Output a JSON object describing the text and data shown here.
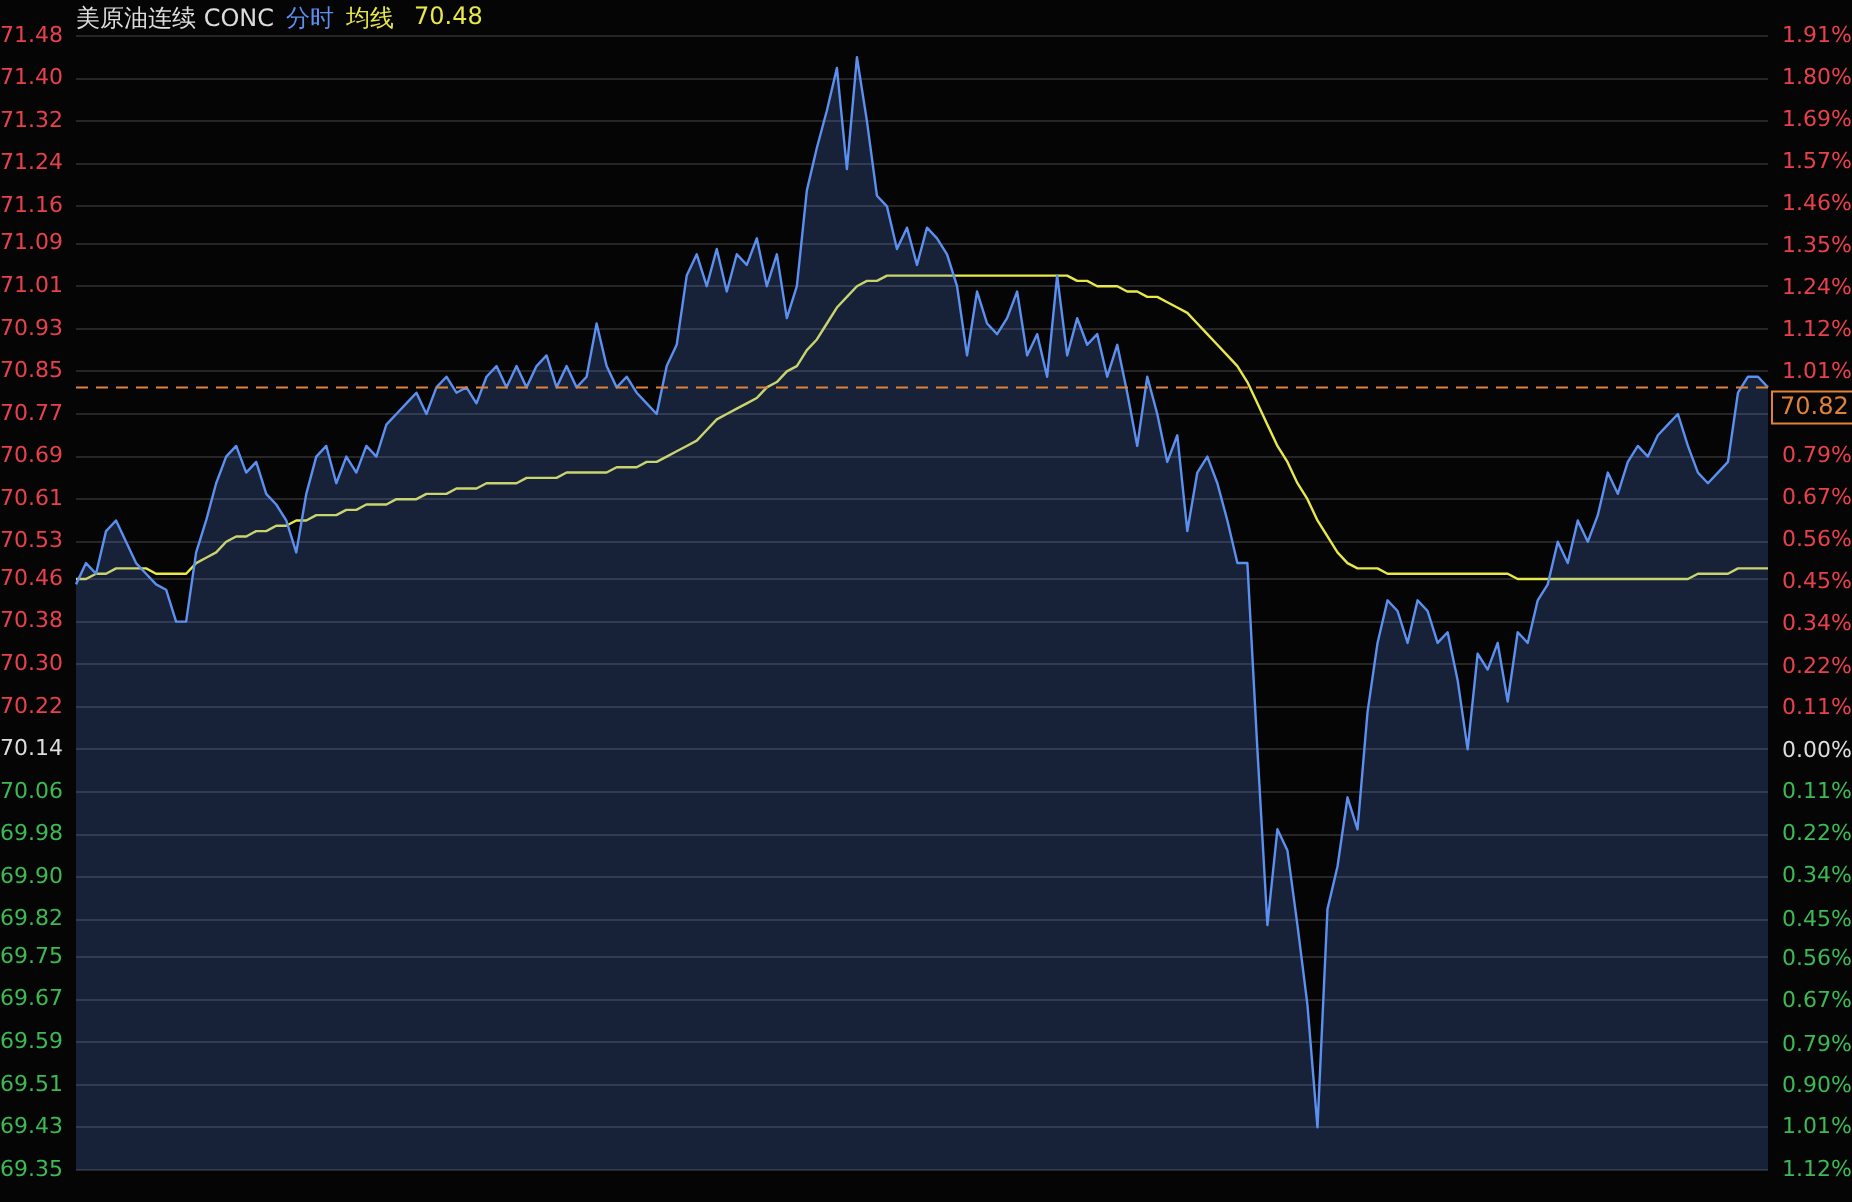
{
  "chart_data": {
    "type": "line",
    "title": "美原油连续 CONC",
    "legend": "top",
    "tick_labels": "y",
    "grid": "y",
    "marker": "none",
    "annotations": [
      "70.48"
    ],
    "categories": [
      null,
      null,
      null,
      null,
      null,
      null,
      null,
      null,
      null,
      null,
      null,
      null,
      null,
      null,
      null,
      null,
      null,
      null,
      null,
      null,
      null,
      null,
      null,
      null,
      null,
      null,
      null,
      null,
      null,
      null,
      null,
      null,
      null,
      null,
      null,
      null,
      null,
      null,
      null,
      null,
      null,
      null,
      null,
      null,
      null,
      null,
      null,
      null,
      null,
      null,
      null,
      null,
      null,
      null,
      null,
      null,
      null,
      null,
      null,
      null,
      null,
      null,
      null,
      null,
      null,
      null,
      null,
      null,
      null,
      null,
      null,
      null,
      null,
      null,
      null,
      null,
      null,
      null,
      null,
      null,
      null,
      null,
      null,
      null,
      null,
      null,
      null,
      null,
      null,
      null,
      null,
      null,
      null,
      null,
      null,
      null,
      null,
      null,
      null,
      null,
      null,
      null,
      null,
      null,
      null,
      null,
      null,
      null,
      null,
      null,
      null,
      null,
      null,
      null,
      null,
      null,
      null,
      null,
      null,
      null,
      null,
      null,
      null,
      null,
      null,
      null,
      null,
      null,
      null,
      null,
      null,
      null,
      null,
      null,
      null,
      null,
      null,
      null,
      null,
      null,
      null,
      null,
      null,
      null,
      null,
      null,
      null,
      null,
      null,
      null,
      null,
      null,
      null,
      null,
      null,
      null,
      null,
      null,
      null,
      null,
      null,
      null,
      null,
      null,
      null,
      null,
      null,
      null,
      null,
      null
    ],
    "series": [
      {
        "name": "分时",
        "type": "area",
        "color": "#5b8ff0",
        "values": [
          70.45,
          70.49,
          70.47,
          70.55,
          70.57,
          70.53,
          70.49,
          70.47,
          70.45,
          70.44,
          70.38,
          70.38,
          70.51,
          70.57,
          70.64,
          70.69,
          70.71,
          70.66,
          70.68,
          70.62,
          70.6,
          70.57,
          70.51,
          70.62,
          70.69,
          70.71,
          70.64,
          70.69,
          70.66,
          70.71,
          70.69,
          70.75,
          70.77,
          70.79,
          70.81,
          70.77,
          70.82,
          70.84,
          70.81,
          70.82,
          70.79,
          70.84,
          70.86,
          70.82,
          70.86,
          70.82,
          70.86,
          70.88,
          70.82,
          70.86,
          70.82,
          70.84,
          70.94,
          70.86,
          70.82,
          70.84,
          70.81,
          70.79,
          70.77,
          70.86,
          70.9,
          71.03,
          71.07,
          71.01,
          71.08,
          71.0,
          71.07,
          71.05,
          71.1,
          71.01,
          71.07,
          70.95,
          71.01,
          71.19,
          71.27,
          71.34,
          71.42,
          71.23,
          71.44,
          71.32,
          71.18,
          71.16,
          71.08,
          71.12,
          71.05,
          71.12,
          71.1,
          71.07,
          71.01,
          70.88,
          71.0,
          70.94,
          70.92,
          70.95,
          71.0,
          70.88,
          70.92,
          70.84,
          71.03,
          70.88,
          70.95,
          70.9,
          70.92,
          70.84,
          70.9,
          70.81,
          70.71,
          70.84,
          70.77,
          70.68,
          70.73,
          70.55,
          70.66,
          70.69,
          70.64,
          70.57,
          70.49,
          70.49,
          70.14,
          69.81,
          69.99,
          69.95,
          69.81,
          69.66,
          69.43,
          69.84,
          69.92,
          70.05,
          69.99,
          70.21,
          70.34,
          70.42,
          70.4,
          70.34,
          70.42,
          70.4,
          70.34,
          70.36,
          70.27,
          70.14,
          70.32,
          70.29,
          70.34,
          70.23,
          70.36,
          70.34,
          70.42,
          70.45,
          70.53,
          70.49,
          70.57,
          70.53,
          70.58,
          70.66,
          70.62,
          70.68,
          70.71,
          70.69,
          70.73,
          70.75,
          70.77,
          70.71,
          70.66,
          70.64,
          70.66,
          70.68,
          70.81,
          70.84,
          70.84,
          70.82
        ]
      },
      {
        "name": "均线",
        "color": "#e8e84a",
        "values": [
          70.46,
          70.46,
          70.47,
          70.47,
          70.48,
          70.48,
          70.48,
          70.48,
          70.47,
          70.47,
          70.47,
          70.47,
          70.49,
          70.5,
          70.51,
          70.53,
          70.54,
          70.54,
          70.55,
          70.55,
          70.56,
          70.56,
          70.57,
          70.57,
          70.58,
          70.58,
          70.58,
          70.59,
          70.59,
          70.6,
          70.6,
          70.6,
          70.61,
          70.61,
          70.61,
          70.62,
          70.62,
          70.62,
          70.63,
          70.63,
          70.63,
          70.64,
          70.64,
          70.64,
          70.64,
          70.65,
          70.65,
          70.65,
          70.65,
          70.66,
          70.66,
          70.66,
          70.66,
          70.66,
          70.67,
          70.67,
          70.67,
          70.68,
          70.68,
          70.69,
          70.7,
          70.71,
          70.72,
          70.74,
          70.76,
          70.77,
          70.78,
          70.79,
          70.8,
          70.82,
          70.83,
          70.85,
          70.86,
          70.89,
          70.91,
          70.94,
          70.97,
          70.99,
          71.01,
          71.02,
          71.02,
          71.03,
          71.03,
          71.03,
          71.03,
          71.03,
          71.03,
          71.03,
          71.03,
          71.03,
          71.03,
          71.03,
          71.03,
          71.03,
          71.03,
          71.03,
          71.03,
          71.03,
          71.03,
          71.03,
          71.02,
          71.02,
          71.01,
          71.01,
          71.01,
          71.0,
          71.0,
          70.99,
          70.99,
          70.98,
          70.97,
          70.96,
          70.94,
          70.92,
          70.9,
          70.88,
          70.86,
          70.83,
          70.79,
          70.75,
          70.71,
          70.68,
          70.64,
          70.61,
          70.57,
          70.54,
          70.51,
          70.49,
          70.48,
          70.48,
          70.48,
          70.47,
          70.47,
          70.47,
          70.47,
          70.47,
          70.47,
          70.47,
          70.47,
          70.47,
          70.47,
          70.47,
          70.47,
          70.47,
          70.46,
          70.46,
          70.46,
          70.46,
          70.46,
          70.46,
          70.46,
          70.46,
          70.46,
          70.46,
          70.46,
          70.46,
          70.46,
          70.46,
          70.46,
          70.46,
          70.46,
          70.46,
          70.47,
          70.47,
          70.47,
          70.47,
          70.48,
          70.48,
          70.48,
          70.48
        ]
      }
    ],
    "ylim": [
      69.35,
      71.48
    ],
    "yticks": [
      71.48,
      {
        "value": 71.4,
        "label": "71.40"
      },
      71.32,
      71.24,
      71.16,
      71.09,
      71.01,
      70.93,
      70.85,
      70.77,
      70.69,
      70.61,
      70.53,
      70.46,
      70.38,
      {
        "value": 70.3,
        "label": "70.30"
      },
      70.22,
      70.14,
      70.06,
      69.98,
      {
        "value": 69.9,
        "label": "69.90"
      },
      69.82,
      69.75,
      69.67,
      69.59,
      69.51,
      69.43,
      69.35
    ],
    "y2lim": [
      -1.12,
      1.91
    ],
    "y2ticks": [
      {
        "value": 1.91,
        "label": "1.91%"
      },
      {
        "value": 1.798,
        "label": "1.80%"
      },
      {
        "value": 1.686,
        "label": "1.69%"
      },
      {
        "value": 1.573,
        "label": "1.57%"
      },
      {
        "value": 1.461,
        "label": "1.46%"
      },
      {
        "value": 1.349,
        "label": "1.35%"
      },
      {
        "value": 1.237,
        "label": "1.24%"
      },
      {
        "value": 1.124,
        "label": "1.12%"
      },
      {
        "value": 1.012,
        "label": "1.01%"
      },
      {
        "value": 0.787,
        "label": "0.79%"
      },
      {
        "value": 0.675,
        "label": "0.67%"
      },
      {
        "value": 0.563,
        "label": "0.56%"
      },
      {
        "value": 0.451,
        "label": "0.45%"
      },
      {
        "value": 0.339,
        "label": "0.34%"
      },
      {
        "value": 0.224,
        "label": "0.22%"
      },
      {
        "value": 0.114,
        "label": "0.11%"
      },
      {
        "value": 0,
        "label": "0.00%"
      },
      {
        "value": -0.11,
        "label": "0.11%"
      },
      {
        "value": -0.222,
        "label": "0.22%"
      },
      {
        "value": -0.336,
        "label": "0.34%"
      },
      {
        "value": -0.454,
        "label": "0.45%"
      },
      {
        "value": -0.558,
        "label": "0.56%"
      },
      {
        "value": -0.67,
        "label": "0.67%"
      },
      {
        "value": -0.786,
        "label": "0.79%"
      },
      {
        "value": -0.895,
        "label": "0.90%"
      },
      {
        "value": -1.007,
        "label": "1.01%"
      },
      {
        "value": -1.12,
        "label": "1.12%"
      }
    ],
    "ref_lines": [
      {
        "axis": "y",
        "value": 70.82,
        "label": "70.82",
        "color": "#e0833a",
        "line_style": "dashed"
      }
    ]
  }
}
